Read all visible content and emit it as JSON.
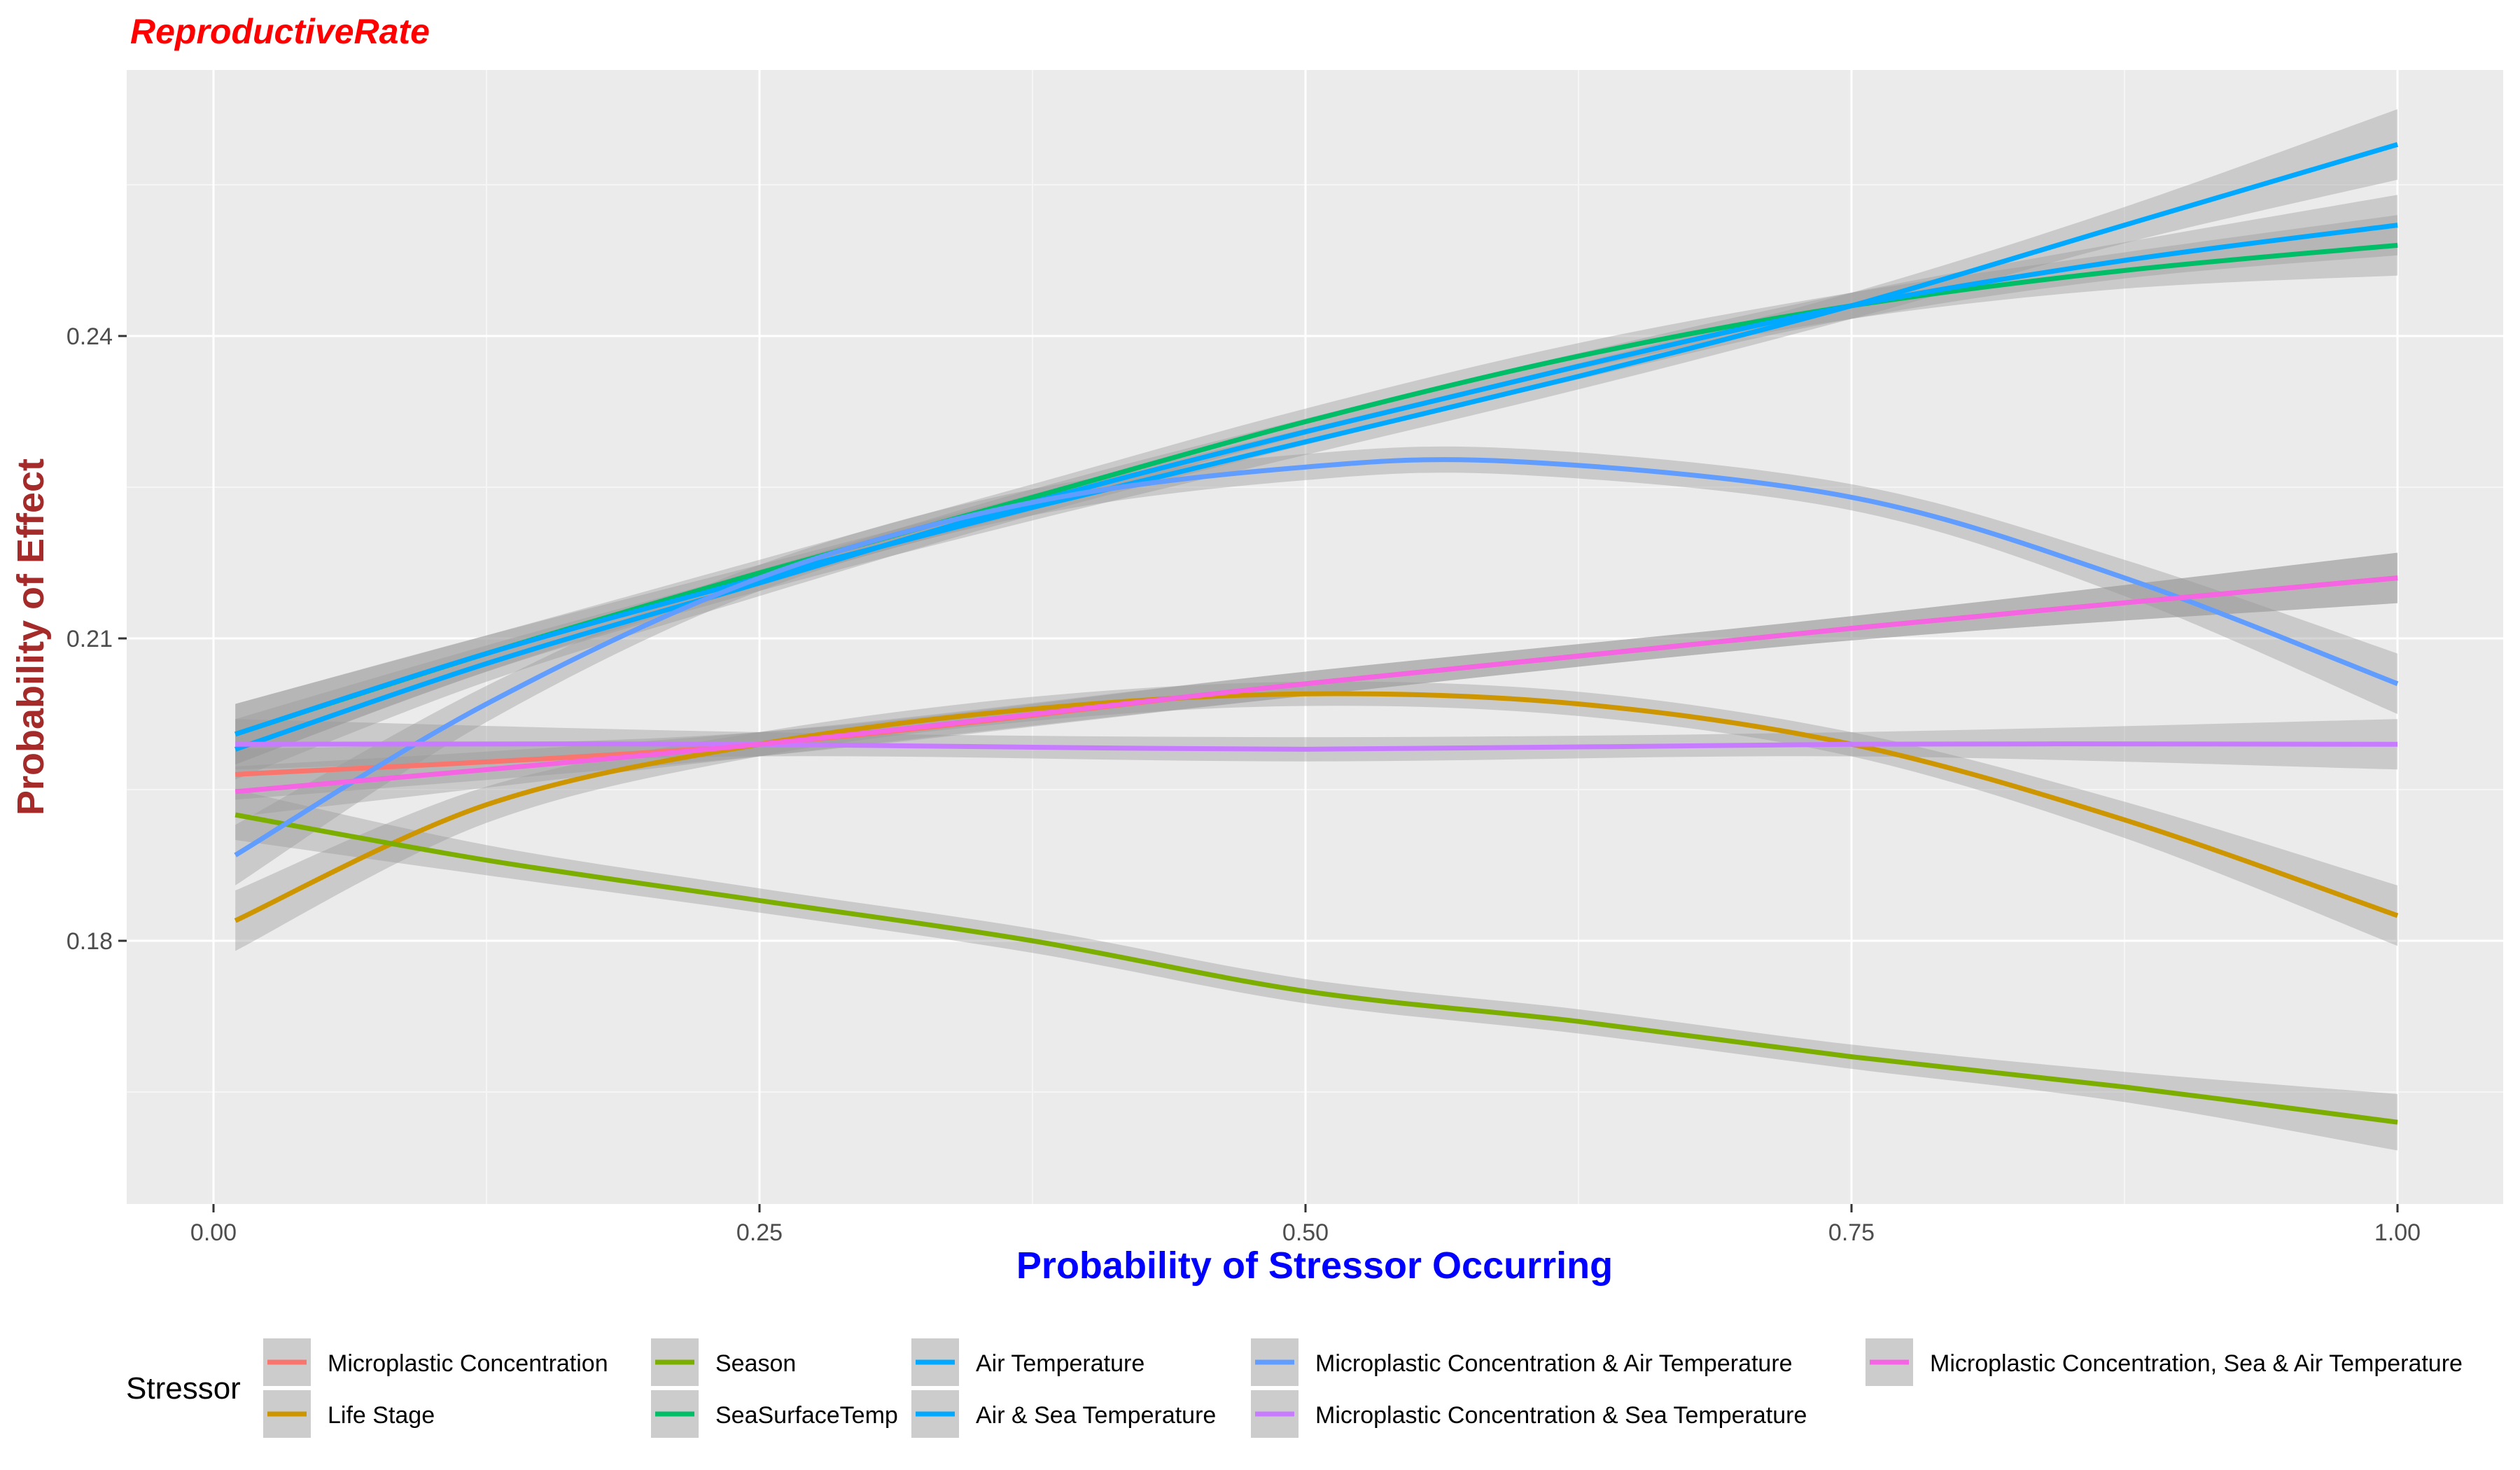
{
  "chart_data": {
    "type": "line",
    "title": "ReproductiveRate",
    "xlabel": "Probability of Stressor Occurring",
    "ylabel": "Probability of Effect",
    "xlim": [
      -0.04,
      1.05
    ],
    "ylim": [
      0.155,
      0.268
    ],
    "x_ticks": [
      0.0,
      0.25,
      0.5,
      0.75,
      1.0
    ],
    "x_tick_labels": [
      "0.00",
      "0.25",
      "0.50",
      "0.75",
      "1.00"
    ],
    "y_ticks": [
      0.18,
      0.21,
      0.24
    ],
    "y_tick_labels": [
      "0.18",
      "0.21",
      "0.24"
    ],
    "grid": true,
    "legend_position": "bottom",
    "legend_title": "Stressor",
    "confidence_band": true,
    "series": [
      {
        "name": "Microplastic Concentration",
        "color": "#F8766D",
        "x": [
          0.01,
          0.25,
          0.5,
          0.75,
          1.0
        ],
        "y": [
          0.1965,
          0.1995,
          0.2055,
          0.211,
          0.216
        ],
        "band": [
          0.0025,
          0.0012,
          0.0012,
          0.0012,
          0.0025
        ]
      },
      {
        "name": "Life Stage",
        "color": "#CD9600",
        "x": [
          0.01,
          0.125,
          0.25,
          0.375,
          0.5,
          0.625,
          0.75,
          0.875,
          1.0
        ],
        "y": [
          0.182,
          0.1935,
          0.1995,
          0.203,
          0.2045,
          0.2035,
          0.1995,
          0.192,
          0.1825
        ],
        "band": [
          0.003,
          0.0018,
          0.0012,
          0.0012,
          0.0012,
          0.0012,
          0.0012,
          0.0018,
          0.003
        ]
      },
      {
        "name": "Season",
        "color": "#7CAE00",
        "x": [
          0.01,
          0.125,
          0.25,
          0.375,
          0.5,
          0.625,
          0.75,
          0.875,
          1.0
        ],
        "y": [
          0.1925,
          0.188,
          0.184,
          0.18,
          0.175,
          0.172,
          0.1685,
          0.1655,
          0.162
        ],
        "band": [
          0.0025,
          0.0015,
          0.0012,
          0.0012,
          0.0012,
          0.0012,
          0.0012,
          0.0015,
          0.0028
        ]
      },
      {
        "name": "SeaSurfaceTemp",
        "color": "#00BE67",
        "x": [
          0.01,
          0.125,
          0.25,
          0.375,
          0.5,
          0.625,
          0.75,
          0.875,
          1.0
        ],
        "y": [
          0.2005,
          0.2085,
          0.2165,
          0.224,
          0.2315,
          0.238,
          0.243,
          0.2465,
          0.249
        ],
        "band": [
          0.003,
          0.0018,
          0.0013,
          0.0013,
          0.0013,
          0.0013,
          0.0013,
          0.0018,
          0.003
        ]
      },
      {
        "name": "Air Temperature",
        "color": "#00A9FF",
        "x": [
          0.01,
          0.125,
          0.25,
          0.375,
          0.5,
          0.625,
          0.75,
          0.875,
          1.0
        ],
        "y": [
          0.2005,
          0.2085,
          0.216,
          0.223,
          0.2295,
          0.236,
          0.243,
          0.251,
          0.259
        ],
        "band": [
          0.003,
          0.0018,
          0.0013,
          0.0013,
          0.0013,
          0.0013,
          0.0013,
          0.0018,
          0.0035
        ]
      },
      {
        "name": "Air & Sea Temperature",
        "color": "#00A9FF",
        "x": [
          0.01,
          0.125,
          0.25,
          0.375,
          0.5,
          0.625,
          0.75,
          0.875,
          1.0
        ],
        "y": [
          0.199,
          0.2075,
          0.2155,
          0.2235,
          0.2305,
          0.237,
          0.243,
          0.2475,
          0.251
        ],
        "band": [
          0.003,
          0.0018,
          0.0013,
          0.0013,
          0.0013,
          0.0013,
          0.0013,
          0.0018,
          0.003
        ]
      },
      {
        "name": "Microplastic Concentration & Air Temperature",
        "color": "#619CFF",
        "x": [
          0.01,
          0.125,
          0.25,
          0.375,
          0.5,
          0.6,
          0.75,
          0.875,
          1.0
        ],
        "y": [
          0.1885,
          0.2035,
          0.216,
          0.2235,
          0.227,
          0.2275,
          0.224,
          0.216,
          0.2055
        ],
        "band": [
          0.003,
          0.0018,
          0.0013,
          0.0013,
          0.0013,
          0.0013,
          0.0013,
          0.0018,
          0.003
        ]
      },
      {
        "name": "Microplastic Concentration & Sea Temperature",
        "color": "#C77CFF",
        "x": [
          0.01,
          0.25,
          0.5,
          0.75,
          1.0
        ],
        "y": [
          0.1995,
          0.1995,
          0.199,
          0.1995,
          0.1995
        ],
        "band": [
          0.0025,
          0.0012,
          0.0012,
          0.0012,
          0.0025
        ]
      },
      {
        "name": "Microplastic Concentration, Sea & Air Temperature",
        "color": "#F564E3",
        "x": [
          0.01,
          0.25,
          0.5,
          0.75,
          1.0
        ],
        "y": [
          0.1948,
          0.1995,
          0.2055,
          0.211,
          0.216
        ],
        "band": [
          0.0025,
          0.0012,
          0.0012,
          0.0012,
          0.0025
        ]
      }
    ]
  }
}
